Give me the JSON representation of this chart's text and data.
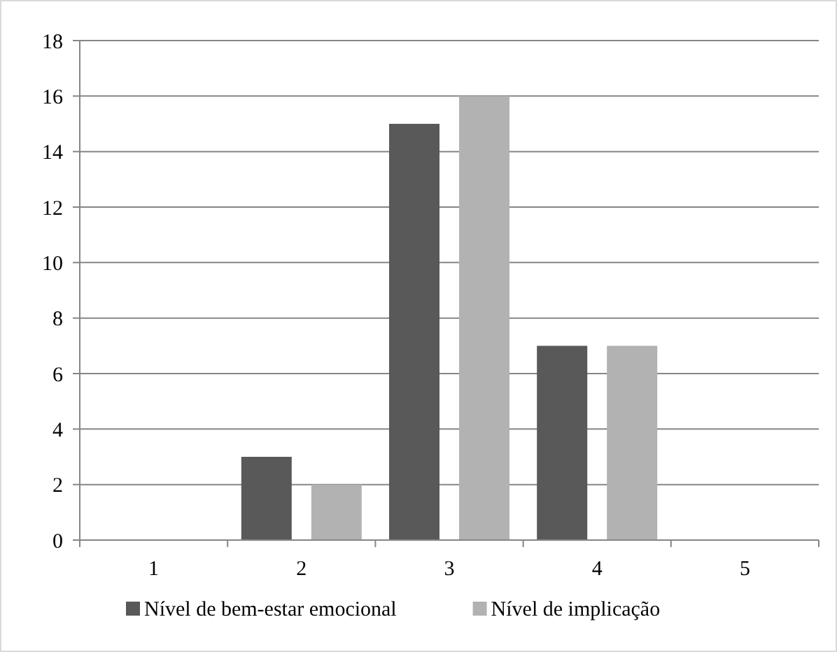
{
  "chart_data": {
    "type": "bar",
    "categories": [
      "1",
      "2",
      "3",
      "4",
      "5"
    ],
    "series": [
      {
        "name": "Nível de bem-estar emocional",
        "color": "#595959",
        "values": [
          0,
          3,
          15,
          7,
          0
        ]
      },
      {
        "name": "Nível de implicação",
        "color": "#b2b2b2",
        "values": [
          0,
          2,
          16,
          7,
          0
        ]
      }
    ],
    "ylim": [
      0,
      18
    ],
    "yticks": [
      0,
      2,
      4,
      6,
      8,
      10,
      12,
      14,
      16,
      18
    ],
    "grid": "y",
    "legend": "bottom"
  }
}
